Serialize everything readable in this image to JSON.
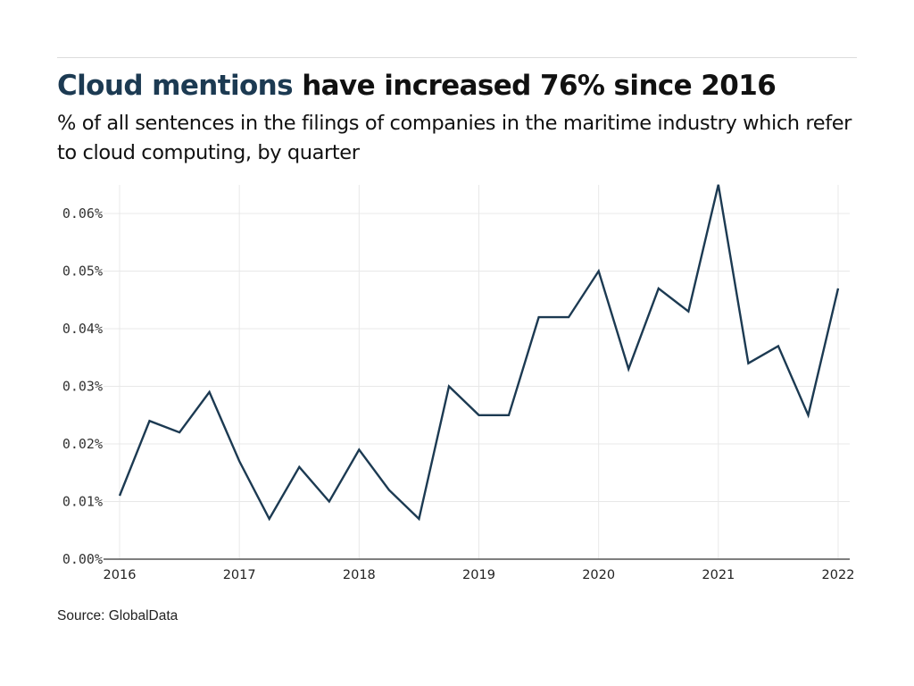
{
  "header": {
    "title_accent": "Cloud mentions",
    "title_rest": " have increased 76% since 2016",
    "subtitle": "% of all sentences in the filings of companies in the maritime industry which refer to cloud computing, by quarter"
  },
  "footer": {
    "source": "Source: GlobalData"
  },
  "colors": {
    "accent": "#1c3a52",
    "line": "#1c3a52",
    "grid": "#e8e8e8",
    "axis": "#555555"
  },
  "chart_data": {
    "type": "line",
    "title": "Cloud mentions have increased 76% since 2016",
    "subtitle": "% of all sentences in the filings of companies in the maritime industry which refer to cloud computing, by quarter",
    "xlabel": "",
    "ylabel": "",
    "x": [
      "2016 Q1",
      "2016 Q2",
      "2016 Q3",
      "2016 Q4",
      "2017 Q1",
      "2017 Q2",
      "2017 Q3",
      "2017 Q4",
      "2018 Q1",
      "2018 Q2",
      "2018 Q3",
      "2018 Q4",
      "2019 Q1",
      "2019 Q2",
      "2019 Q3",
      "2019 Q4",
      "2020 Q1",
      "2020 Q2",
      "2020 Q3",
      "2020 Q4",
      "2021 Q1",
      "2021 Q2",
      "2021 Q3",
      "2021 Q4",
      "2022 Q1"
    ],
    "series": [
      {
        "name": "Cloud mentions",
        "values": [
          0.011,
          0.024,
          0.022,
          0.029,
          0.017,
          0.007,
          0.016,
          0.01,
          0.019,
          0.012,
          0.007,
          0.03,
          0.025,
          0.025,
          0.042,
          0.042,
          0.05,
          0.033,
          0.047,
          0.043,
          0.065,
          0.034,
          0.037,
          0.025,
          0.047
        ]
      }
    ],
    "xticks": [
      "2016",
      "2017",
      "2018",
      "2019",
      "2020",
      "2021",
      "2022"
    ],
    "yticks": [
      "0.00%",
      "0.01%",
      "0.02%",
      "0.03%",
      "0.04%",
      "0.05%",
      "0.06%"
    ],
    "ytick_values": [
      0,
      0.01,
      0.02,
      0.03,
      0.04,
      0.05,
      0.06
    ],
    "xlim": [
      2016,
      2022.15
    ],
    "ylim": [
      0,
      0.065
    ],
    "grid": true,
    "legend": "none",
    "source": "Source: GlobalData"
  }
}
